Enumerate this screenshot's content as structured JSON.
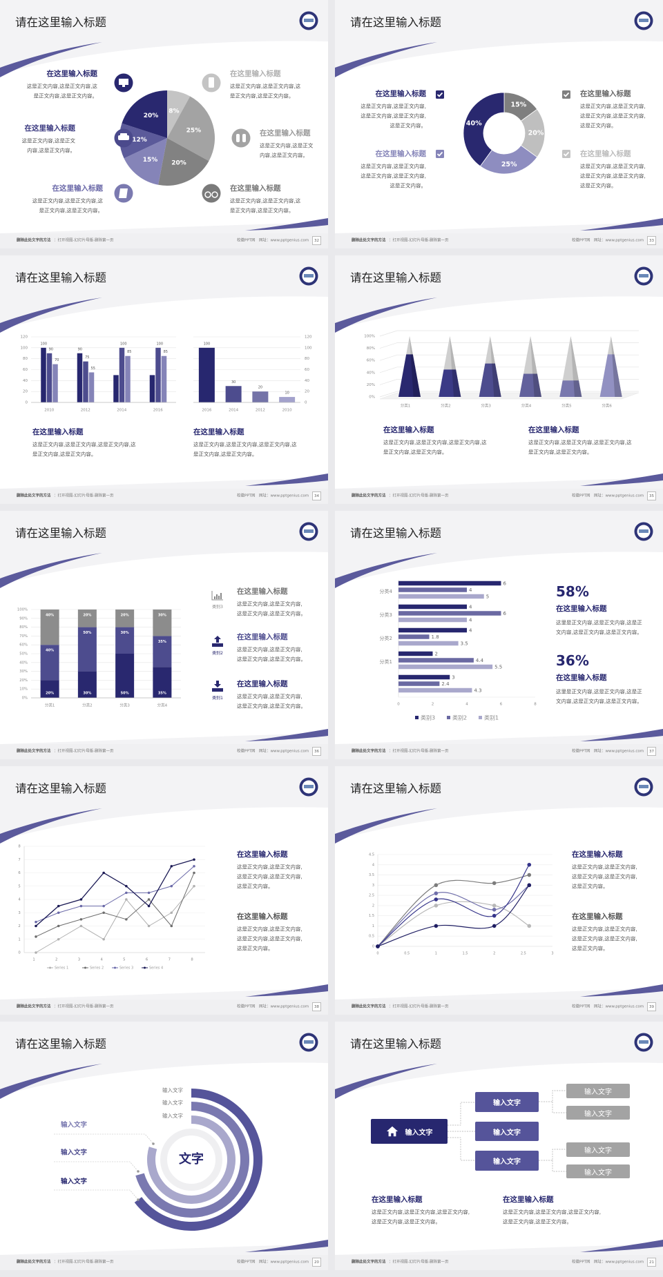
{
  "footer": {
    "note_label": "删除此处文字的方法",
    "note_text": "：打开视图-幻灯片母版-删除第一页",
    "site": "校徽PPT网",
    "url": "网址：www.pptgenius.com"
  },
  "slides": [
    {
      "page": "32",
      "title": "请在这里输入标题",
      "icons": [
        "monitor-icon",
        "car-icon",
        "book-icon",
        "phone-icon",
        "binoculars-icon",
        "bicycle-icon"
      ],
      "blocks": [
        {
          "heading": "在这里输入标题",
          "lines": [
            "这是正文内容,这是正文内容,这",
            "是正文内容,这是正文内容。"
          ]
        },
        {
          "heading": "在这里输入标题",
          "lines": [
            "这是正文内容,这是正文",
            "内容,这是正文内容。"
          ]
        },
        {
          "heading": "在这里输入标题",
          "lines": [
            "这是正文内容,这是正文内容,这",
            "是正文内容,这是正文内容。"
          ]
        },
        {
          "heading": "在这里输入标题",
          "lines": [
            "这是正文内容,这是正文内容,这",
            "是正文内容,这是正文内容。"
          ]
        },
        {
          "heading": "在这里输入标题",
          "lines": [
            "这是正文内容,这是正文",
            "内容,这是正文内容。"
          ]
        },
        {
          "heading": "在这里输入标题",
          "lines": [
            "这是正文内容,这是正文内容,这",
            "是正文内容,这是正文内容。"
          ]
        }
      ]
    },
    {
      "page": "33",
      "title": "请在这里输入标题",
      "blocks": [
        {
          "heading": "在这里输入标题",
          "lines": [
            "这是正文内容,这是正文内容,",
            "这是正文内容,这是正文内容,",
            "这是正文内容。"
          ]
        },
        {
          "heading": "在这里输入标题",
          "lines": [
            "这是正文内容,这是正文内容,",
            "这是正文内容,这是正文内容,",
            "这是正文内容。"
          ]
        },
        {
          "heading": "在这里输入标题",
          "lines": [
            "这是正文内容,这是正文内容,",
            "这是正文内容,这是正文内容,",
            "这是正文内容。"
          ]
        },
        {
          "heading": "在这里输入标题",
          "lines": [
            "这是正文内容,这是正文内容,",
            "这是正文内容,这是正文内容,",
            "这是正文内容。"
          ]
        }
      ]
    },
    {
      "page": "34",
      "title": "请在这里输入标题",
      "blocks": [
        {
          "heading": "在这里输入标题",
          "lines": [
            "这是正文内容,这是正文内容,这是正文内容,这",
            "是正文内容,这是正文内容。"
          ]
        },
        {
          "heading": "在这里输入标题",
          "lines": [
            "这是正文内容,这是正文内容,这是正文内容,这",
            "是正文内容,这是正文内容。"
          ]
        }
      ]
    },
    {
      "page": "35",
      "title": "请在这里输入标题",
      "blocks": [
        {
          "heading": "在这里输入标题",
          "lines": [
            "这是正文内容,这是正文内容,这是正文内容,这",
            "是正文内容,这是正文内容。"
          ]
        },
        {
          "heading": "在这里输入标题",
          "lines": [
            "这是正文内容,这是正文内容,这是正文内容,这",
            "是正文内容,这是正文内容。"
          ]
        }
      ]
    },
    {
      "page": "36",
      "title": "请在这里输入标题",
      "icon_labels": [
        "类别3",
        "类别2",
        "类别1"
      ],
      "blocks": [
        {
          "heading": "在这里输入标题",
          "lines": [
            "这是正文内容,这是正文内容,",
            "这是正文内容,这是正文内容。"
          ]
        },
        {
          "heading": "在这里输入标题",
          "lines": [
            "这是正文内容,这是正文内容,",
            "这是正文内容,这是正文内容。"
          ]
        },
        {
          "heading": "在这里输入标题",
          "lines": [
            "这是正文内容,这是正文内容,",
            "这是正文内容,这是正文内容。"
          ]
        }
      ]
    },
    {
      "page": "37",
      "title": "请在这里输入标题",
      "stats": [
        {
          "value": "58%",
          "heading": "在这里输入标题",
          "lines": [
            "这里是正文内容,这是正文内容,这是正",
            "文内容,这是正文内容,这是正文内容。"
          ]
        },
        {
          "value": "36%",
          "heading": "在这里输入标题",
          "lines": [
            "这里是正文内容,这是正文内容,这是正",
            "文内容,这是正文内容,这是正文内容。"
          ]
        }
      ]
    },
    {
      "page": "38",
      "title": "请在这里输入标题",
      "blocks": [
        {
          "heading": "在这里输入标题",
          "lines": [
            "这是正文内容,这是正文内容,",
            "这是正文内容,这是正文内容,",
            "这是正文内容。"
          ]
        },
        {
          "heading": "在这里输入标题",
          "lines": [
            "这是正文内容,这是正文内容,",
            "这是正文内容,这是正文内容,",
            "这是正文内容。"
          ]
        }
      ]
    },
    {
      "page": "39",
      "title": "请在这里输入标题",
      "blocks": [
        {
          "heading": "在这里输入标题",
          "lines": [
            "这是正文内容,这是正文内容,",
            "这是正文内容,这是正文内容,",
            "这是正文内容。"
          ]
        },
        {
          "heading": "在这里输入标题",
          "lines": [
            "这是正文内容,这是正文内容,",
            "这是正文内容,这是正文内容,",
            "这是正文内容。"
          ]
        }
      ]
    },
    {
      "page": "20",
      "title": "请在这里输入标题",
      "center_text": "文字",
      "right_labels": [
        "输入文字",
        "输入文字",
        "输入文字"
      ],
      "left_labels": [
        "输入文字",
        "输入文字",
        "输入文字"
      ]
    },
    {
      "page": "21",
      "title": "请在这里输入标题",
      "root": "输入文字",
      "mid": [
        "输入文字",
        "输入文字",
        "输入文字"
      ],
      "leaves": [
        "输入文字",
        "输入文字",
        "输入文字",
        "输入文字"
      ],
      "blocks": [
        {
          "heading": "在这里输入标题",
          "lines": [
            "这是正文内容,这是正文内容,这是正文内容,",
            "这是正文内容,这是正文内容。"
          ]
        },
        {
          "heading": "在这里输入标题",
          "lines": [
            "这是正文内容,这是正文内容,这是正文内容,",
            "这是正文内容,这是正文内容。"
          ]
        }
      ]
    }
  ],
  "colors": {
    "navy": "#27276f",
    "purple": "#4d4c8e",
    "lavender": "#8584b8",
    "light_lavender": "#a9a8cc",
    "gray": "#808080",
    "light_gray": "#bfbfbf"
  },
  "chart_data": [
    {
      "type": "pie",
      "values": [
        8,
        25,
        20,
        15,
        12,
        20
      ],
      "colors": [
        "#c4c4c4",
        "#a3a3a3",
        "#828282",
        "#8584b8",
        "#5b5a9a",
        "#29286f"
      ]
    },
    {
      "type": "pie",
      "donut": true,
      "values": [
        15,
        20,
        25,
        40
      ],
      "colors": [
        "#7f7f7f",
        "#bfbfbf",
        "#8e8dc0",
        "#29286f"
      ]
    },
    {
      "type": "bar",
      "categories": [
        "2010",
        "2012",
        "2014",
        "2016"
      ],
      "series": [
        {
          "values": [
            100,
            90,
            50,
            50
          ]
        },
        {
          "values": [
            90,
            75,
            100,
            100
          ]
        },
        {
          "values": [
            70,
            55,
            85,
            85
          ]
        }
      ],
      "data_labels": [
        [
          "100",
          "90",
          "70"
        ],
        [
          "90",
          "75",
          "55"
        ],
        [
          "",
          "100",
          "85"
        ],
        [
          "",
          "100",
          "85"
        ]
      ],
      "ylim": [
        0,
        120
      ],
      "y_ticks": [
        "0",
        "20",
        "40",
        "60",
        "80",
        "100",
        "120"
      ],
      "grid": true,
      "colors": [
        "#27276f",
        "#4d4c8e",
        "#8584b8"
      ]
    },
    {
      "type": "bar",
      "categories": [
        "2016",
        "2014",
        "2012",
        "2010"
      ],
      "values": [
        100,
        30,
        20,
        10
      ],
      "ylim": [
        0,
        120
      ],
      "y_ticks": [
        "0",
        "20",
        "40",
        "60",
        "80",
        "100",
        "120"
      ],
      "y_axis": "right",
      "grid": true,
      "colors": [
        "#27276f",
        "#4d4c8e",
        "#7473a8",
        "#a3a2cc"
      ]
    },
    {
      "type": "bar",
      "shape": "pyramid-3d",
      "stacked_percent": true,
      "categories": [
        "分类1",
        "分类2",
        "分类3",
        "分类4",
        "分类5",
        "分类6"
      ],
      "values": [
        70,
        45,
        55,
        38,
        27,
        70
      ],
      "ylim": [
        0,
        100
      ],
      "y_ticks": [
        "0%",
        "20%",
        "40%",
        "60%",
        "80%",
        "100%"
      ],
      "grid": true,
      "colors": [
        "#29286f",
        "#3b3a86",
        "#4d4c8e",
        "#62619c",
        "#7978ae",
        "#9291c2"
      ],
      "remainder_color": "#cfcfcf"
    },
    {
      "type": "bar",
      "stacked_percent": true,
      "categories": [
        "分类1",
        "分类2",
        "分类3",
        "分类4"
      ],
      "series": [
        {
          "values": [
            20,
            30,
            50,
            35
          ]
        },
        {
          "values": [
            40,
            50,
            30,
            35
          ]
        },
        {
          "values": [
            40,
            20,
            20,
            30
          ]
        }
      ],
      "ylim": [
        0,
        100
      ],
      "y_ticks": [
        "0%",
        "10%",
        "20%",
        "30%",
        "40%",
        "50%",
        "60%",
        "70%",
        "80%",
        "90%",
        "100%"
      ],
      "grid": true,
      "colors": [
        "#29286f",
        "#4d4c8e",
        "#8c8c8c"
      ]
    },
    {
      "type": "bar",
      "orientation": "horizontal",
      "categories": [
        "分类4",
        "分类3",
        "分类2",
        "分类1",
        ""
      ],
      "series": [
        {
          "name": "类别3",
          "values": [
            6,
            4,
            4,
            2,
            3
          ]
        },
        {
          "name": "类别2",
          "values": [
            4,
            6,
            1.8,
            4.4,
            2.4
          ]
        },
        {
          "name": "类别1",
          "values": [
            5,
            4,
            3.5,
            5.5,
            4.3
          ]
        }
      ],
      "xlim": [
        0,
        8
      ],
      "x_ticks": [
        "0",
        "2",
        "4",
        "6",
        "8"
      ],
      "legend": "bottom",
      "colors": [
        "#27276f",
        "#6a69a2",
        "#a9a8cc"
      ]
    },
    {
      "type": "line",
      "x": [
        1,
        2,
        3,
        4,
        5,
        6,
        7,
        8
      ],
      "series": [
        {
          "name": "Series 1",
          "values": [
            0,
            1,
            2,
            1,
            4,
            2,
            3,
            5
          ]
        },
        {
          "name": "Series 2",
          "values": [
            1.2,
            2,
            2.5,
            3,
            2.5,
            4,
            2,
            6
          ]
        },
        {
          "name": "Series 3",
          "values": [
            2.3,
            3,
            3.5,
            3.5,
            4.5,
            4.5,
            5,
            6.5
          ]
        },
        {
          "name": "Series 4",
          "values": [
            2,
            3.5,
            4,
            6,
            5,
            3.5,
            6.5,
            7
          ]
        }
      ],
      "ylim": [
        0,
        8
      ],
      "y_ticks": [
        "0",
        "1",
        "2",
        "3",
        "4",
        "5",
        "6",
        "7",
        "8"
      ],
      "x_ticks": [
        "1",
        "2",
        "3",
        "4",
        "5",
        "6",
        "7",
        "8"
      ],
      "legend": "bottom",
      "grid": true,
      "colors": [
        "#b0b0b0",
        "#6e6e6e",
        "#6a69a8",
        "#1b1a55"
      ]
    },
    {
      "type": "scatter",
      "smooth_lines": true,
      "x": [
        0,
        1,
        2,
        2.6
      ],
      "series": [
        {
          "values": [
            0,
            1,
            1,
            3
          ]
        },
        {
          "values": [
            0,
            2.3,
            1.5,
            4
          ]
        },
        {
          "values": [
            0,
            2.6,
            1.8,
            3
          ]
        },
        {
          "values": [
            0,
            3,
            3.1,
            3.5
          ]
        },
        {
          "values": [
            0,
            2,
            2,
            1
          ]
        }
      ],
      "xlim": [
        0,
        3
      ],
      "ylim": [
        0,
        4.5
      ],
      "x_ticks": [
        "0",
        "0.5",
        "1",
        "1.5",
        "2",
        "2.5",
        "3"
      ],
      "y_ticks": [
        "0",
        "0.5",
        "1",
        "1.5",
        "2",
        "2.5",
        "3",
        "3.5",
        "4",
        "4.5"
      ],
      "grid": true,
      "colors": [
        "#1f1e63",
        "#35348a",
        "#6f6eaa",
        "#7c7c7c",
        "#b8b8b8"
      ]
    }
  ]
}
